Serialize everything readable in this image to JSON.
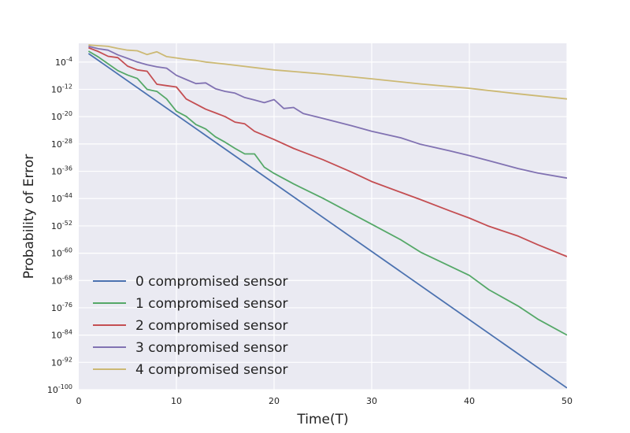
{
  "chart_data": {
    "type": "line",
    "xlabel": "Time(T)",
    "ylabel": "Probability of Error",
    "x_scale": "linear",
    "y_scale": "log",
    "xlim": [
      0,
      50
    ],
    "ylim_log10": [
      -100,
      0
    ],
    "x_ticks": [
      0,
      10,
      20,
      30,
      40,
      50
    ],
    "y_tick_exponents": [
      -100,
      -92,
      -84,
      -76,
      -68,
      -60,
      -52,
      -44,
      -36,
      -28,
      -20,
      -12,
      -4
    ],
    "y_tick_base": "10",
    "grid": true,
    "legend_position": "lower-left",
    "series": [
      {
        "name": "0 compromised sensor",
        "color": "#4c72b0",
        "x": [
          1,
          50
        ],
        "log10_y": [
          -1.5,
          -99.5
        ]
      },
      {
        "name": "1 compromised sensor",
        "color": "#55a868",
        "x": [
          1,
          2,
          3,
          4,
          5,
          6,
          7,
          8,
          9,
          10,
          11,
          12,
          13,
          14,
          15,
          16,
          17,
          18,
          19,
          20,
          22,
          25,
          30,
          33,
          35,
          40,
          42,
          45,
          47,
          50
        ],
        "log10_y": [
          -0.8,
          -2.5,
          -4.5,
          -6.5,
          -7.8,
          -8.8,
          -12.0,
          -12.6,
          -14.8,
          -18.4,
          -19.9,
          -22.3,
          -23.6,
          -25.9,
          -27.5,
          -29.3,
          -30.9,
          -30.9,
          -34.8,
          -36.6,
          -39.7,
          -43.9,
          -51.5,
          -56.1,
          -59.7,
          -66.5,
          -70.7,
          -75.5,
          -79.3,
          -84.0
        ]
      },
      {
        "name": "2 compromised sensor",
        "color": "#c44e52",
        "x": [
          1,
          2,
          3,
          4,
          5,
          6,
          7,
          8,
          9,
          10,
          11,
          12,
          13,
          14,
          15,
          16,
          17,
          18,
          20,
          22,
          25,
          28,
          30,
          33,
          35,
          38,
          40,
          42,
          45,
          47,
          50
        ],
        "log10_y": [
          0.2,
          -0.9,
          -2.3,
          -2.7,
          -5.2,
          -6.3,
          -6.7,
          -10.5,
          -10.9,
          -11.3,
          -14.8,
          -16.3,
          -17.8,
          -18.9,
          -20.0,
          -21.6,
          -22.1,
          -24.3,
          -26.7,
          -29.3,
          -32.6,
          -36.3,
          -39.0,
          -42.2,
          -44.3,
          -47.6,
          -49.7,
          -52.1,
          -55.0,
          -57.5,
          -61.0
        ]
      },
      {
        "name": "3 compromised sensor",
        "color": "#8172b2",
        "x": [
          1,
          2,
          3,
          4,
          5,
          6,
          7,
          8,
          9,
          10,
          11,
          12,
          13,
          14,
          15,
          16,
          17,
          18,
          19,
          20,
          21,
          22,
          23,
          25,
          28,
          30,
          33,
          35,
          38,
          40,
          42,
          45,
          47,
          50
        ],
        "log10_y": [
          0.6,
          -0.1,
          -0.5,
          -1.9,
          -2.9,
          -4.0,
          -4.8,
          -5.4,
          -5.8,
          -7.9,
          -9.1,
          -10.3,
          -10.1,
          -11.8,
          -12.6,
          -13.1,
          -14.4,
          -15.1,
          -15.9,
          -15.0,
          -17.6,
          -17.3,
          -19.1,
          -20.5,
          -22.7,
          -24.3,
          -26.2,
          -28.1,
          -30.0,
          -31.4,
          -32.9,
          -35.2,
          -36.5,
          -38.0
        ]
      },
      {
        "name": "4 compromised sensor",
        "color": "#ccb974",
        "x": [
          1,
          2,
          3,
          4,
          5,
          6,
          7,
          8,
          9,
          10,
          11,
          12,
          13,
          15,
          20,
          25,
          30,
          35,
          40,
          45,
          50
        ],
        "log10_y": [
          1.0,
          0.8,
          0.6,
          0.0,
          -0.5,
          -0.7,
          -1.8,
          -1.0,
          -2.4,
          -2.8,
          -3.2,
          -3.5,
          -4.0,
          -4.6,
          -6.3,
          -7.5,
          -8.9,
          -10.4,
          -11.7,
          -13.3,
          -14.8
        ]
      }
    ]
  }
}
